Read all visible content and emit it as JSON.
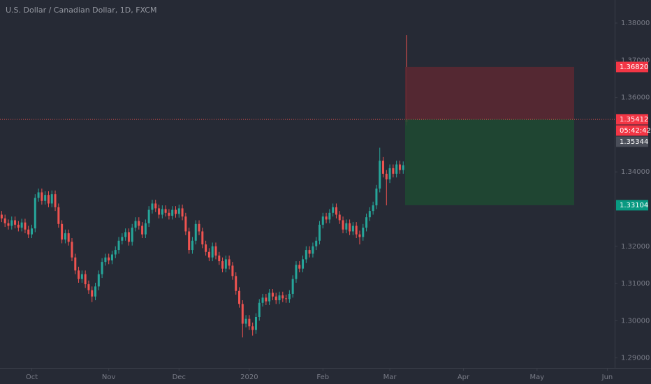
{
  "chart_data": {
    "type": "candlestick",
    "title": "U.S. Dollar / Canadian Dollar, 1D, FXCM",
    "up_color": "#26a69a",
    "down_color": "#ef5350",
    "xlim": [
      -0.5,
      183.2
    ],
    "xticks": [
      {
        "value": 9,
        "label": "Oct"
      },
      {
        "value": 32,
        "label": "Nov"
      },
      {
        "value": 53,
        "label": "Dec"
      },
      {
        "value": 74,
        "label": "2020"
      },
      {
        "value": 96,
        "label": "Feb"
      },
      {
        "value": 116,
        "label": "Mar"
      },
      {
        "value": 138,
        "label": "Apr"
      },
      {
        "value": 160,
        "label": "May"
      },
      {
        "value": 181,
        "label": "Jun"
      }
    ],
    "ylim": [
      1.2873,
      1.3862
    ],
    "yticks": [
      {
        "value": 1.29,
        "label": "1.29000"
      },
      {
        "value": 1.3,
        "label": "1.30000"
      },
      {
        "value": 1.31,
        "label": "1.31000"
      },
      {
        "value": 1.32,
        "label": "1.32000"
      },
      {
        "value": 1.34,
        "label": "1.34000"
      },
      {
        "value": 1.36,
        "label": "1.36000"
      },
      {
        "value": 1.37,
        "label": "1.37000"
      },
      {
        "value": 1.38,
        "label": "1.38000"
      }
    ],
    "x": [
      0,
      1,
      2,
      3,
      4,
      5,
      6,
      7,
      8,
      9,
      10,
      11,
      12,
      13,
      14,
      15,
      16,
      17,
      18,
      19,
      20,
      21,
      22,
      23,
      24,
      25,
      26,
      27,
      28,
      29,
      30,
      31,
      32,
      33,
      34,
      35,
      36,
      37,
      38,
      39,
      40,
      41,
      42,
      43,
      44,
      45,
      46,
      47,
      48,
      49,
      50,
      51,
      52,
      53,
      54,
      55,
      56,
      57,
      58,
      59,
      60,
      61,
      62,
      63,
      64,
      65,
      66,
      67,
      68,
      69,
      70,
      71,
      72,
      73,
      74,
      75,
      76,
      77,
      78,
      79,
      80,
      81,
      82,
      83,
      84,
      85,
      86,
      87,
      88,
      89,
      90,
      91,
      92,
      93,
      94,
      95,
      96,
      97,
      98,
      99,
      100,
      101,
      102,
      103,
      104,
      105,
      106,
      107,
      108,
      109,
      110,
      111,
      112,
      113,
      114,
      115,
      116,
      117,
      118,
      119,
      120,
      121
    ],
    "open": [
      1.3285,
      1.3275,
      1.3262,
      1.3255,
      1.327,
      1.3258,
      1.325,
      1.3264,
      1.3245,
      1.3232,
      1.3248,
      1.333,
      1.3345,
      1.3322,
      1.3338,
      1.3315,
      1.334,
      1.3305,
      1.326,
      1.3218,
      1.3235,
      1.3212,
      1.317,
      1.3135,
      1.3112,
      1.3125,
      1.3098,
      1.3082,
      1.3065,
      1.3092,
      1.3125,
      1.3158,
      1.317,
      1.3162,
      1.3178,
      1.319,
      1.3215,
      1.3225,
      1.3238,
      1.3212,
      1.325,
      1.3268,
      1.3255,
      1.3232,
      1.3262,
      1.3298,
      1.3315,
      1.3302,
      1.3285,
      1.33,
      1.329,
      1.3282,
      1.3298,
      1.3287,
      1.3302,
      1.328,
      1.324,
      1.319,
      1.3215,
      1.326,
      1.324,
      1.3205,
      1.3185,
      1.317,
      1.32,
      1.3175,
      1.316,
      1.314,
      1.3165,
      1.3148,
      1.312,
      1.308,
      1.3045,
      1.2992,
      1.3005,
      1.2985,
      1.2975,
      1.301,
      1.3048,
      1.3062,
      1.3052,
      1.3075,
      1.3065,
      1.3055,
      1.3068,
      1.306,
      1.3058,
      1.3072,
      1.3112,
      1.315,
      1.314,
      1.3165,
      1.319,
      1.318,
      1.32,
      1.3215,
      1.3258,
      1.328,
      1.3272,
      1.329,
      1.3305,
      1.3285,
      1.327,
      1.3245,
      1.3262,
      1.324,
      1.3255,
      1.3232,
      1.3225,
      1.325,
      1.3278,
      1.3295,
      1.331,
      1.3355,
      1.343,
      1.3395,
      1.338,
      1.341,
      1.3395,
      1.342,
      1.3405,
      1.3541
    ],
    "high": [
      1.3295,
      1.3285,
      1.3272,
      1.328,
      1.328,
      1.3268,
      1.3274,
      1.3274,
      1.3255,
      1.3258,
      1.334,
      1.3355,
      1.3355,
      1.3348,
      1.3348,
      1.335,
      1.335,
      1.3315,
      1.327,
      1.3245,
      1.3245,
      1.3222,
      1.318,
      1.3145,
      1.3135,
      1.3135,
      1.3108,
      1.3092,
      1.3102,
      1.3135,
      1.3168,
      1.318,
      1.318,
      1.3188,
      1.32,
      1.3225,
      1.3235,
      1.3248,
      1.3248,
      1.326,
      1.3278,
      1.3278,
      1.3265,
      1.3272,
      1.3308,
      1.3325,
      1.3325,
      1.3312,
      1.331,
      1.331,
      1.33,
      1.3308,
      1.3308,
      1.3312,
      1.3312,
      1.329,
      1.325,
      1.3225,
      1.327,
      1.327,
      1.325,
      1.3215,
      1.3195,
      1.321,
      1.321,
      1.3185,
      1.317,
      1.3175,
      1.3175,
      1.3158,
      1.313,
      1.309,
      1.3055,
      1.3015,
      1.3015,
      1.2995,
      1.302,
      1.3058,
      1.3072,
      1.3072,
      1.3085,
      1.3085,
      1.3075,
      1.3078,
      1.3078,
      1.307,
      1.3082,
      1.3122,
      1.316,
      1.316,
      1.3175,
      1.32,
      1.32,
      1.321,
      1.3225,
      1.3268,
      1.329,
      1.329,
      1.33,
      1.3315,
      1.3315,
      1.3295,
      1.328,
      1.3272,
      1.3272,
      1.3265,
      1.3265,
      1.3242,
      1.326,
      1.3288,
      1.3305,
      1.332,
      1.3365,
      1.3465,
      1.344,
      1.3405,
      1.342,
      1.342,
      1.343,
      1.343,
      1.3428,
      1.3768
    ],
    "low": [
      1.3265,
      1.3252,
      1.3245,
      1.3245,
      1.3248,
      1.324,
      1.324,
      1.3235,
      1.3222,
      1.3222,
      1.3238,
      1.332,
      1.3312,
      1.3312,
      1.3305,
      1.3305,
      1.3295,
      1.325,
      1.3208,
      1.3208,
      1.3202,
      1.316,
      1.3125,
      1.3102,
      1.3102,
      1.3088,
      1.3072,
      1.305,
      1.3055,
      1.3082,
      1.3115,
      1.3148,
      1.3152,
      1.3152,
      1.3168,
      1.318,
      1.3205,
      1.3215,
      1.3202,
      1.3202,
      1.324,
      1.3245,
      1.3222,
      1.3222,
      1.3252,
      1.3288,
      1.3292,
      1.3275,
      1.3275,
      1.328,
      1.3272,
      1.3272,
      1.3277,
      1.3277,
      1.327,
      1.323,
      1.318,
      1.318,
      1.3205,
      1.323,
      1.3195,
      1.3175,
      1.316,
      1.316,
      1.3165,
      1.315,
      1.313,
      1.313,
      1.3138,
      1.311,
      1.307,
      1.3035,
      1.2955,
      1.2982,
      1.2975,
      1.296,
      1.2965,
      1.3,
      1.3038,
      1.3042,
      1.3042,
      1.3055,
      1.3045,
      1.3045,
      1.305,
      1.3048,
      1.3048,
      1.3062,
      1.3102,
      1.313,
      1.313,
      1.3155,
      1.317,
      1.317,
      1.319,
      1.3205,
      1.3248,
      1.3262,
      1.3262,
      1.328,
      1.3275,
      1.326,
      1.3235,
      1.3235,
      1.323,
      1.323,
      1.3222,
      1.3205,
      1.3215,
      1.324,
      1.3268,
      1.3285,
      1.33,
      1.3345,
      1.3385,
      1.331,
      1.337,
      1.3385,
      1.3385,
      1.3395,
      1.3395,
      1.3525
    ],
    "close": [
      1.3275,
      1.3262,
      1.3255,
      1.327,
      1.3258,
      1.325,
      1.3264,
      1.3245,
      1.3232,
      1.3248,
      1.333,
      1.3345,
      1.3322,
      1.3338,
      1.3315,
      1.334,
      1.3305,
      1.326,
      1.3218,
      1.3235,
      1.3212,
      1.317,
      1.3135,
      1.3112,
      1.3125,
      1.3098,
      1.3082,
      1.3065,
      1.3092,
      1.3125,
      1.3158,
      1.317,
      1.3162,
      1.3178,
      1.319,
      1.3215,
      1.3225,
      1.3238,
      1.3212,
      1.325,
      1.3268,
      1.3255,
      1.3232,
      1.3262,
      1.3298,
      1.3315,
      1.3302,
      1.3285,
      1.33,
      1.329,
      1.3282,
      1.3298,
      1.3287,
      1.3302,
      1.328,
      1.324,
      1.319,
      1.3215,
      1.326,
      1.324,
      1.3205,
      1.3185,
      1.317,
      1.32,
      1.3175,
      1.316,
      1.314,
      1.3165,
      1.3148,
      1.312,
      1.308,
      1.3045,
      1.2992,
      1.3005,
      1.2985,
      1.2975,
      1.301,
      1.3048,
      1.3062,
      1.3052,
      1.3075,
      1.3065,
      1.3055,
      1.3068,
      1.306,
      1.3058,
      1.3072,
      1.3112,
      1.315,
      1.314,
      1.3165,
      1.319,
      1.318,
      1.32,
      1.3215,
      1.3258,
      1.328,
      1.3272,
      1.329,
      1.3305,
      1.3285,
      1.327,
      1.3245,
      1.3262,
      1.324,
      1.3255,
      1.3232,
      1.3225,
      1.325,
      1.3278,
      1.3295,
      1.331,
      1.3355,
      1.343,
      1.3395,
      1.338,
      1.341,
      1.3395,
      1.342,
      1.3405,
      1.3418,
      1.3534
    ],
    "position": {
      "stop": {
        "value": 1.3682,
        "label": "1.36820"
      },
      "entry": {
        "value": 1.35412,
        "label": "1.35412"
      },
      "target": {
        "value": 1.33104,
        "label": "1.33104"
      },
      "stop_color": "#5a2832",
      "target_color": "#1f4832",
      "stop_label_color": "#f23645",
      "target_label_color": "#089981"
    },
    "countdown": "05:42:42",
    "last_price": {
      "value": 1.35344,
      "label": "1.35344",
      "color": "#4a4e59"
    }
  }
}
